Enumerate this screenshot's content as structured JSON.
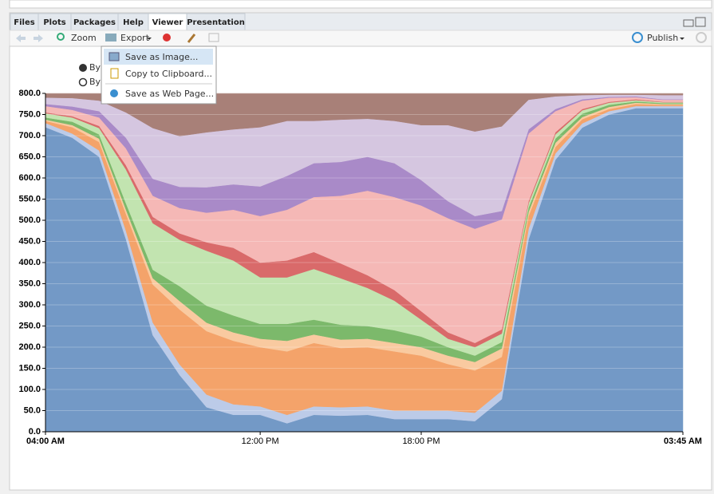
{
  "tabs": [
    "Files",
    "Plots",
    "Packages",
    "Help",
    "Viewer",
    "Presentation"
  ],
  "toolbar": {
    "zoom": "Zoom",
    "export": "Export",
    "publish": "Publish"
  },
  "menu": [
    "Save as Image...",
    "Copy to Clipboard...",
    "Save as Web Page..."
  ],
  "radios": [
    "By",
    "By"
  ],
  "chart_data": {
    "type": "stacked-area",
    "x": [
      4,
      5,
      6,
      7,
      8,
      9,
      10,
      11,
      12,
      13,
      14,
      15,
      16,
      17,
      18,
      19,
      20,
      21,
      22,
      23,
      24,
      25,
      26,
      27,
      27.75
    ],
    "xlim": [
      4,
      27.75
    ],
    "xticks": [
      {
        "value": 4,
        "label": "04:00 AM"
      },
      {
        "value": 12,
        "label": "12:00 PM"
      },
      {
        "value": 18,
        "label": "18:00 PM"
      },
      {
        "value": 27.75,
        "label": "03:45 AM"
      }
    ],
    "ylim": [
      0,
      800
    ],
    "yticks": [
      {
        "value": 0,
        "label": "0.0"
      },
      {
        "value": 50,
        "label": "50.0"
      },
      {
        "value": 100,
        "label": "100.0"
      },
      {
        "value": 150,
        "label": "150.0"
      },
      {
        "value": 200,
        "label": "200.0"
      },
      {
        "value": 250,
        "label": "250.0"
      },
      {
        "value": 300,
        "label": "300.0"
      },
      {
        "value": 350,
        "label": "350.0"
      },
      {
        "value": 400,
        "label": "400.0"
      },
      {
        "value": 450,
        "label": "450.0"
      },
      {
        "value": 500,
        "label": "500.0"
      },
      {
        "value": 550,
        "label": "550.0"
      },
      {
        "value": 600,
        "label": "600.0"
      },
      {
        "value": 650,
        "label": "650.0"
      },
      {
        "value": 700,
        "label": "700.0"
      },
      {
        "value": 750,
        "label": "750.0"
      },
      {
        "value": 800,
        "label": "800.0"
      }
    ],
    "grid": true,
    "series": [
      {
        "color": "#7399c6",
        "values": [
          720,
          695,
          650,
          455,
          228,
          134,
          58,
          40,
          40,
          20,
          40,
          38,
          40,
          30,
          30,
          30,
          25,
          77,
          455,
          643,
          719,
          750,
          765,
          765,
          765
        ]
      },
      {
        "color": "#bccbe8",
        "values": [
          10,
          10,
          15,
          20,
          30,
          25,
          30,
          25,
          20,
          20,
          20,
          20,
          20,
          20,
          20,
          20,
          20,
          20,
          25,
          15,
          10,
          8,
          5,
          5,
          5
        ]
      },
      {
        "color": "#f4a36a",
        "values": [
          5,
          15,
          20,
          40,
          90,
          130,
          150,
          150,
          140,
          150,
          150,
          140,
          140,
          140,
          130,
          110,
          100,
          80,
          30,
          15,
          10,
          5,
          5,
          3,
          3
        ]
      },
      {
        "color": "#f9caa0",
        "values": [
          3,
          5,
          8,
          10,
          15,
          20,
          20,
          20,
          20,
          25,
          20,
          20,
          20,
          20,
          20,
          20,
          20,
          20,
          10,
          10,
          5,
          5,
          3,
          2,
          2
        ]
      },
      {
        "color": "#7cb96b",
        "values": [
          5,
          8,
          10,
          15,
          20,
          35,
          40,
          40,
          35,
          40,
          35,
          35,
          30,
          30,
          25,
          20,
          15,
          15,
          10,
          10,
          8,
          5,
          3,
          2,
          2
        ]
      },
      {
        "color": "#c2e4b0",
        "values": [
          10,
          10,
          15,
          80,
          110,
          110,
          130,
          130,
          110,
          110,
          120,
          110,
          90,
          70,
          40,
          20,
          20,
          20,
          10,
          10,
          8,
          5,
          3,
          2,
          2
        ]
      },
      {
        "color": "#d96a6a",
        "values": [
          2,
          3,
          5,
          10,
          15,
          15,
          20,
          30,
          35,
          40,
          40,
          35,
          30,
          25,
          20,
          15,
          10,
          10,
          5,
          5,
          3,
          2,
          2,
          1,
          1
        ]
      },
      {
        "color": "#f5b8b6",
        "values": [
          15,
          15,
          20,
          40,
          50,
          60,
          70,
          90,
          110,
          120,
          130,
          160,
          200,
          220,
          250,
          270,
          270,
          260,
          160,
          50,
          20,
          10,
          5,
          5,
          5
        ]
      },
      {
        "color": "#a98ac8",
        "values": [
          5,
          8,
          15,
          25,
          40,
          50,
          60,
          60,
          70,
          80,
          80,
          80,
          80,
          80,
          60,
          40,
          30,
          20,
          10,
          5,
          3,
          2,
          2,
          1,
          1
        ]
      },
      {
        "color": "#d5c6e0",
        "values": [
          15,
          20,
          25,
          60,
          120,
          120,
          130,
          130,
          140,
          130,
          100,
          100,
          90,
          100,
          130,
          180,
          200,
          200,
          70,
          30,
          10,
          5,
          4,
          10,
          10
        ]
      },
      {
        "color": "#a88078",
        "values": [
          10,
          11,
          17,
          45,
          82,
          101,
          92,
          85,
          80,
          65,
          65,
          62,
          60,
          65,
          75,
          75,
          90,
          78,
          15,
          7,
          4,
          3,
          3,
          4,
          4
        ]
      }
    ]
  }
}
